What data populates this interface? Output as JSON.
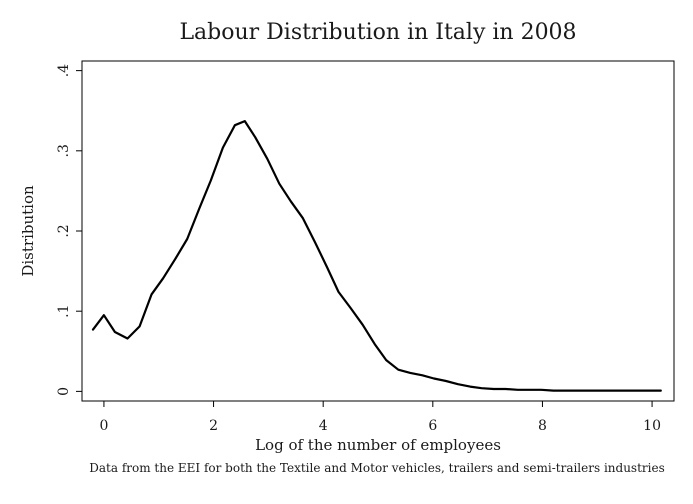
{
  "chart_data": {
    "type": "line",
    "title": "Labour Distribution in Italy in 2008",
    "xlabel": "Log of the number of employees",
    "ylabel": "Distribution",
    "note": "Data from the EEI for both the Textile and Motor vehicles, trailers and semi-trailers industries",
    "xlim": [
      -0.4,
      10.4
    ],
    "ylim": [
      -0.012,
      0.412
    ],
    "x_ticks": [
      0,
      2,
      4,
      6,
      8,
      10
    ],
    "x_tick_labels": [
      "0",
      "2",
      "4",
      "6",
      "8",
      "10"
    ],
    "y_ticks": [
      0,
      0.1,
      0.2,
      0.3,
      0.4
    ],
    "y_tick_labels": [
      "0",
      ".1",
      ".2",
      ".3",
      ".4"
    ],
    "grid": false,
    "legend": "none",
    "series": [
      {
        "color": "#000000",
        "x": [
          -0.2,
          0.0,
          0.2,
          0.43,
          0.65,
          0.87,
          1.08,
          1.3,
          1.52,
          1.74,
          1.95,
          2.17,
          2.39,
          2.57,
          2.76,
          2.98,
          3.2,
          3.41,
          3.63,
          3.85,
          4.07,
          4.28,
          4.5,
          4.72,
          4.94,
          5.15,
          5.37,
          5.59,
          5.81,
          6.02,
          6.24,
          6.46,
          6.68,
          6.89,
          7.11,
          7.33,
          7.55,
          7.76,
          7.98,
          8.2,
          8.42,
          8.63,
          8.85,
          9.07,
          9.29,
          9.5,
          9.72,
          9.94,
          10.16
        ],
        "y": [
          0.077,
          0.095,
          0.074,
          0.066,
          0.081,
          0.121,
          0.141,
          0.165,
          0.19,
          0.228,
          0.263,
          0.304,
          0.332,
          0.337,
          0.317,
          0.29,
          0.259,
          0.237,
          0.216,
          0.186,
          0.155,
          0.124,
          0.104,
          0.083,
          0.059,
          0.039,
          0.027,
          0.023,
          0.02,
          0.016,
          0.013,
          0.009,
          0.006,
          0.004,
          0.003,
          0.003,
          0.002,
          0.002,
          0.002,
          0.001,
          0.001,
          0.001,
          0.001,
          0.001,
          0.001,
          0.001,
          0.001,
          0.001,
          0.001
        ]
      }
    ]
  }
}
